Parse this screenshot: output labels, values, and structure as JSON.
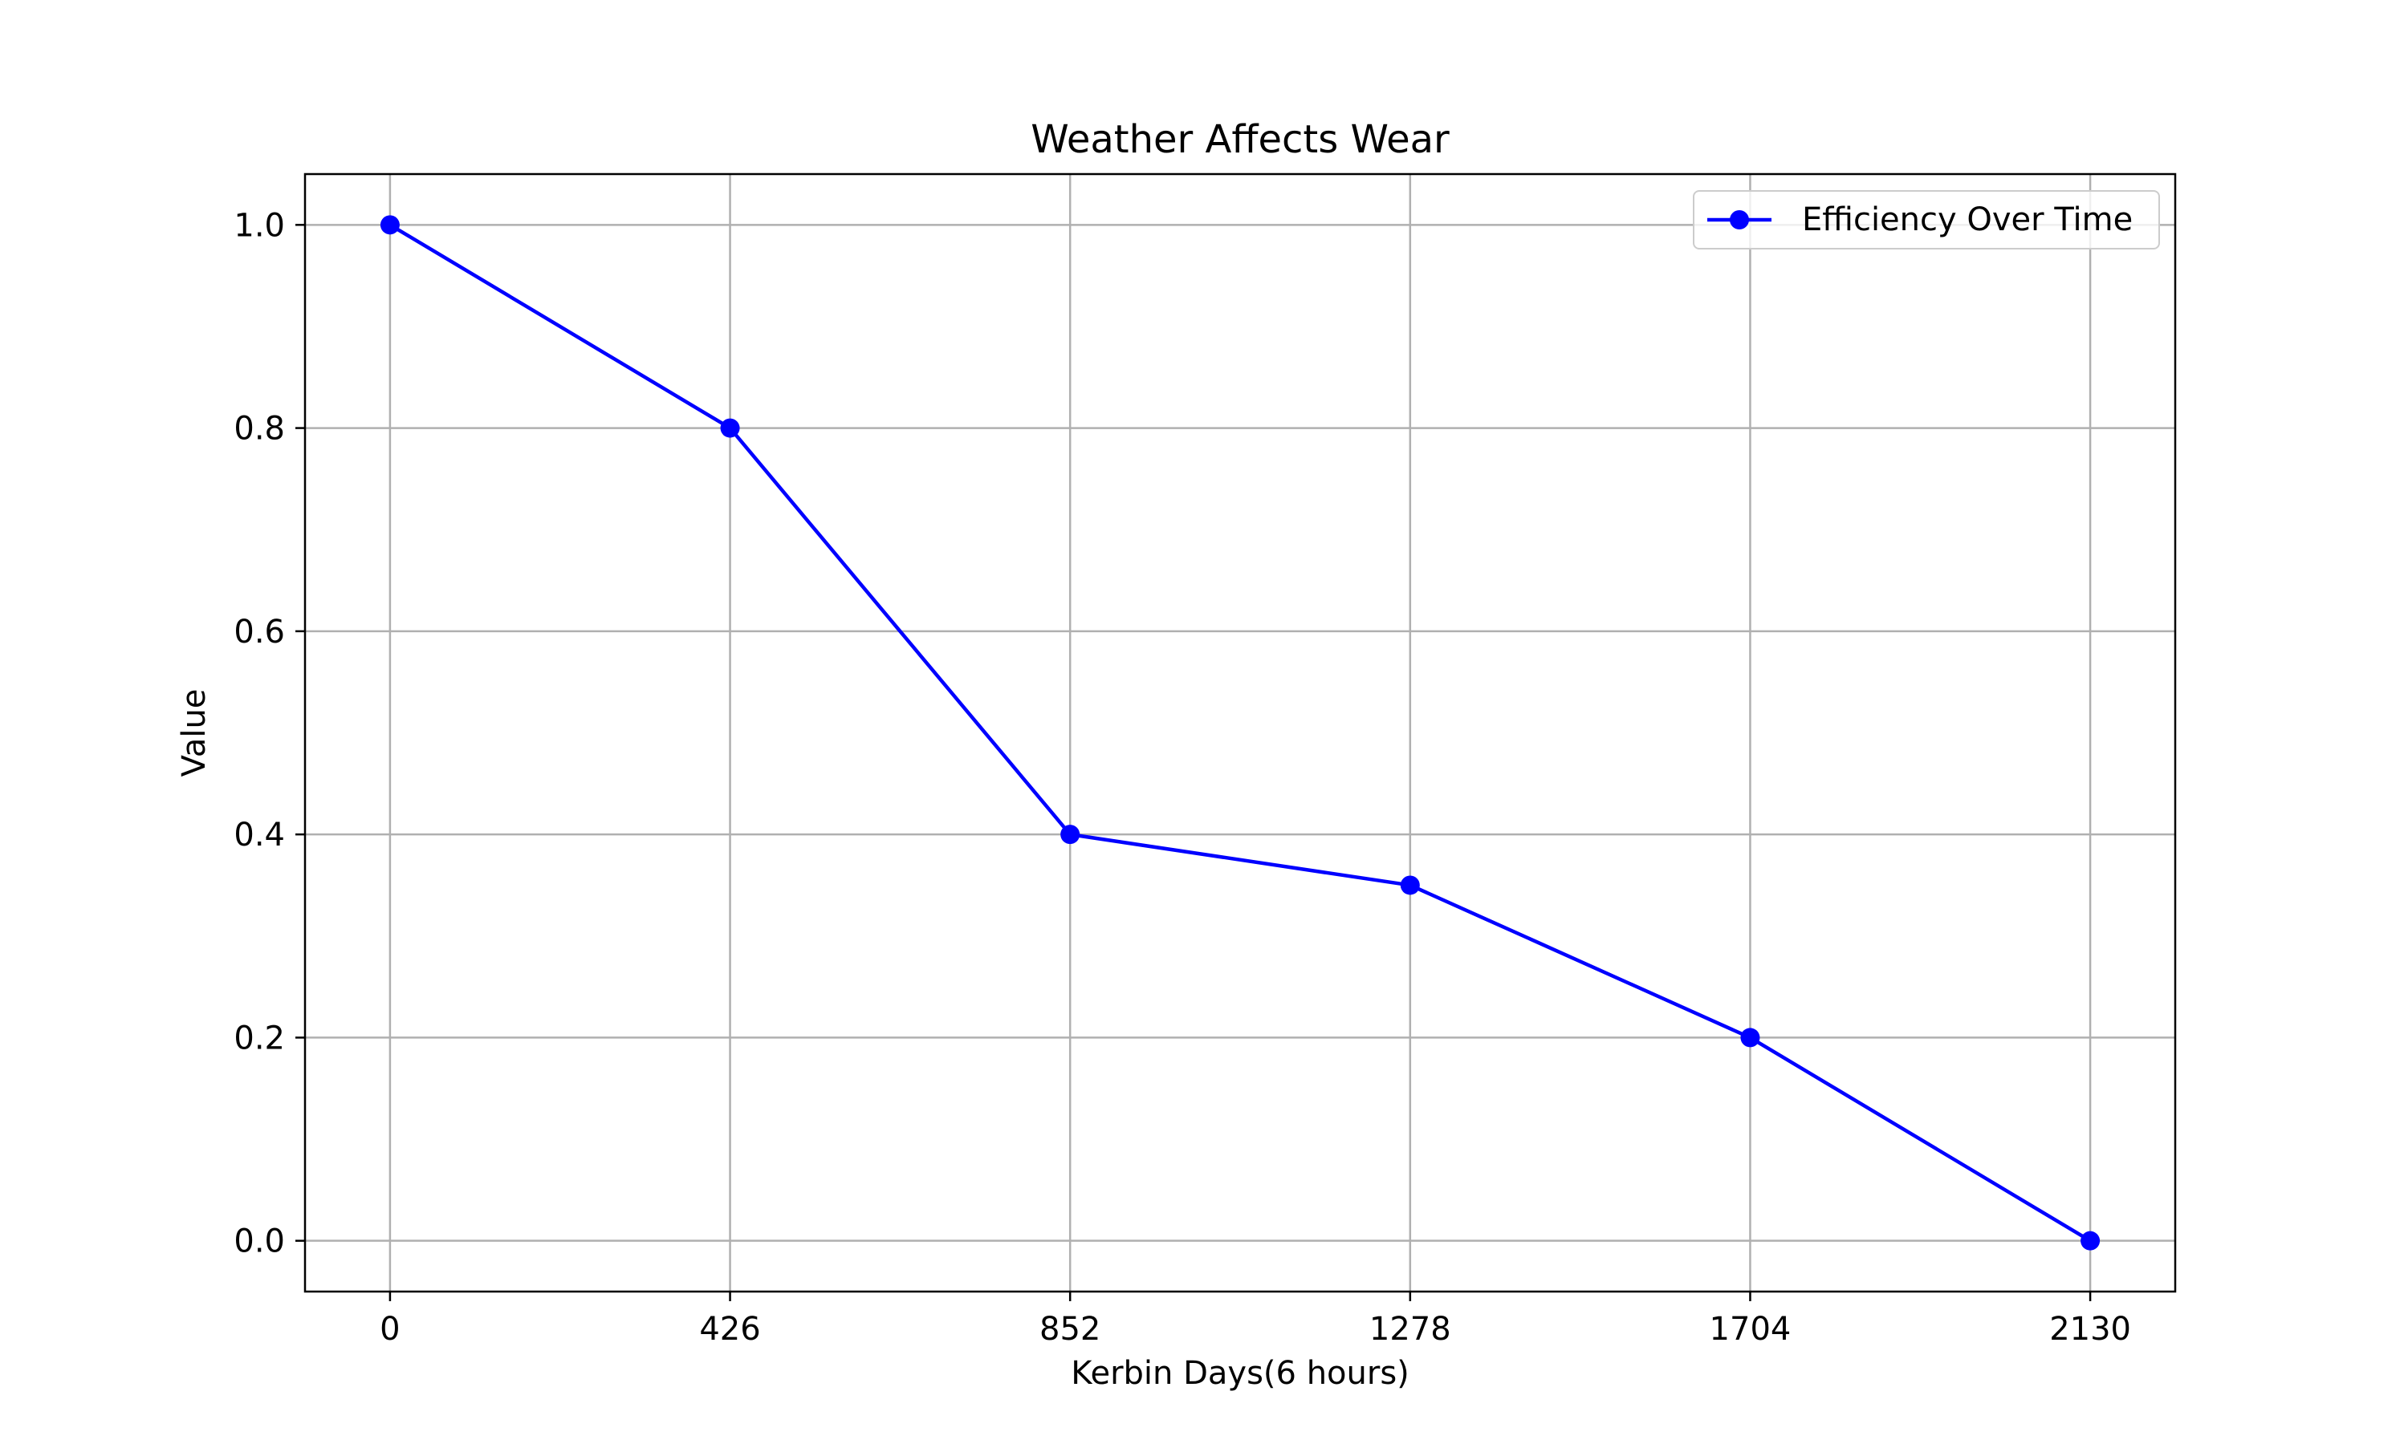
{
  "chart_data": {
    "type": "line",
    "title": "Weather Affects Wear",
    "xlabel": "Kerbin Days(6 hours)",
    "ylabel": "Value",
    "x": [
      0,
      426,
      852,
      1278,
      1704,
      2130
    ],
    "xticks": [
      "0",
      "426",
      "852",
      "1278",
      "1704",
      "2130"
    ],
    "yticks": [
      "0.0",
      "0.2",
      "0.4",
      "0.6",
      "0.8",
      "1.0"
    ],
    "ytick_values": [
      0.0,
      0.2,
      0.4,
      0.6,
      0.8,
      1.0
    ],
    "xlim": [
      -106.5,
      2236.5
    ],
    "ylim": [
      -0.05,
      1.05
    ],
    "grid": true,
    "legend_position": "top-right",
    "series": [
      {
        "name": "Efficiency Over Time",
        "color": "#0000ff",
        "marker": "circle",
        "values": [
          1.0,
          0.8,
          0.4,
          0.35,
          0.2,
          0.0
        ]
      }
    ]
  }
}
